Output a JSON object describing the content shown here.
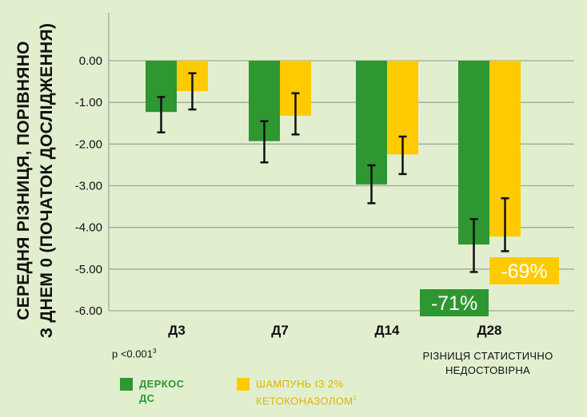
{
  "chart_data": {
    "type": "bar",
    "ylabel": "СЕРЕДНЯ РІЗНИЦЯ, ПОРІВНЯНО З ДНЕМ 0 (ПОЧАТОК ДОСЛІДЖЕННЯ)",
    "ylabel_lines": [
      "СЕРЕДНЯ РІЗНИЦЯ, ПОРІВНЯНО",
      "З ДНЕМ 0 (ПОЧАТОК ДОСЛІДЖЕННЯ)"
    ],
    "categories": [
      "Д3",
      "Д7",
      "Д14",
      "Д28"
    ],
    "ylim": [
      -6,
      0
    ],
    "yticks": [
      "0.00",
      "-1.00",
      "-2.00",
      "-3.00",
      "-4.00",
      "-5.00",
      "-6.00"
    ],
    "ytick_values": [
      0,
      -1,
      -2,
      -3,
      -4,
      -5,
      -6
    ],
    "grid": true,
    "series": [
      {
        "name": "ДЕРКОС ДС",
        "color": "#2e9732",
        "values": [
          -1.23,
          -1.93,
          -2.97,
          -4.41
        ],
        "error_low": [
          -1.72,
          -2.44,
          -3.42,
          -5.07
        ],
        "error_high": [
          -0.87,
          -1.45,
          -2.51,
          -3.8
        ]
      },
      {
        "name": "ШАМПУНЬ ІЗ 2% КЕТОКОНАЗОЛОМ",
        "name_lines": [
          "ШАМПУНЬ ІЗ 2%",
          "КЕТОКОНАЗОЛОМ"
        ],
        "sup": "1",
        "color": "#ffcb00",
        "values": [
          -0.73,
          -1.32,
          -2.25,
          -4.22
        ],
        "error_low": [
          -1.17,
          -1.77,
          -2.72,
          -4.57
        ],
        "error_high": [
          -0.3,
          -0.78,
          -1.82,
          -3.3
        ]
      }
    ],
    "annotations": [
      {
        "text": "-71%",
        "series": 0,
        "category": 3,
        "color": "#2e9732"
      },
      {
        "text": "-69%",
        "series": 1,
        "category": 3,
        "color": "#ffcb00"
      }
    ]
  },
  "notes": {
    "pvalue": "p <0.001",
    "pvalue_sup": "3",
    "diff_line1": "РІЗНИЦЯ СТАТИСТИЧНО",
    "diff_line2": "НЕДОСТОВІРНА"
  },
  "legend": {
    "series_a_line1": "ДЕРКОС",
    "series_a_line2": "ДС",
    "series_b_line1": "ШАМПУНЬ ІЗ 2%",
    "series_b_line2": "КЕТОКОНАЗОЛОМ",
    "series_b_sup": "1"
  }
}
